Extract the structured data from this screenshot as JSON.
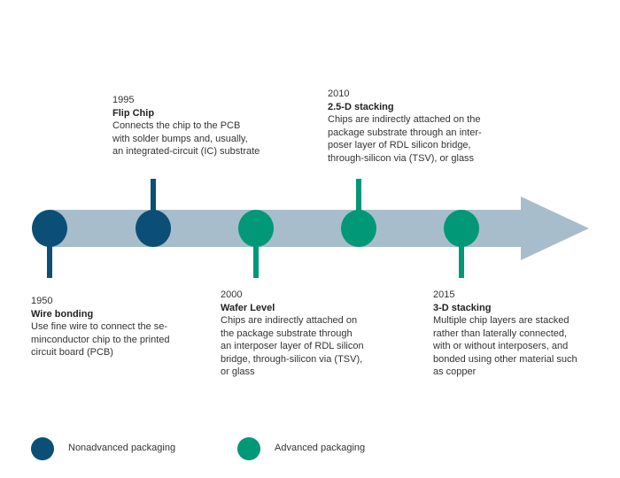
{
  "colors": {
    "nonadvanced": "#0b4f77",
    "advanced": "#009877",
    "arrow": "#a7bdcb"
  },
  "events": [
    {
      "year": "1950",
      "title": "Wire bonding",
      "lines": [
        "Use fine wire to connect the se-",
        "minconductor chip to the printed",
        "circuit board (PCB)"
      ],
      "type": "nonadvanced"
    },
    {
      "year": "1995",
      "title": "Flip Chip",
      "lines": [
        "Connects the chip to the PCB",
        "with solder bumps and, usually,",
        "an integrated-circuit (IC) substrate"
      ],
      "type": "nonadvanced"
    },
    {
      "year": "2000",
      "title": "Wafer Level",
      "lines": [
        "Chips are indirectly attached on",
        "the package substrate through",
        "an interposer layer of RDL silicon",
        "bridge, through-silicon via (TSV),",
        "or glass"
      ],
      "type": "advanced"
    },
    {
      "year": "2010",
      "title": "2.5-D stacking",
      "lines": [
        "Chips are indirectly attached on the",
        "package substrate through an inter-",
        "poser layer of RDL silicon bridge,",
        "through-silicon via (TSV), or glass"
      ],
      "type": "advanced"
    },
    {
      "year": "2015",
      "title": "3-D stacking",
      "lines": [
        "Multiple chip layers are stacked",
        "rather than laterally connected,",
        "with or without interposers, and",
        "bonded using other material such",
        "as copper"
      ],
      "type": "advanced"
    }
  ],
  "legend": [
    {
      "label": "Nonadvanced packaging",
      "type": "nonadvanced"
    },
    {
      "label": "Advanced packaging",
      "type": "advanced"
    }
  ]
}
